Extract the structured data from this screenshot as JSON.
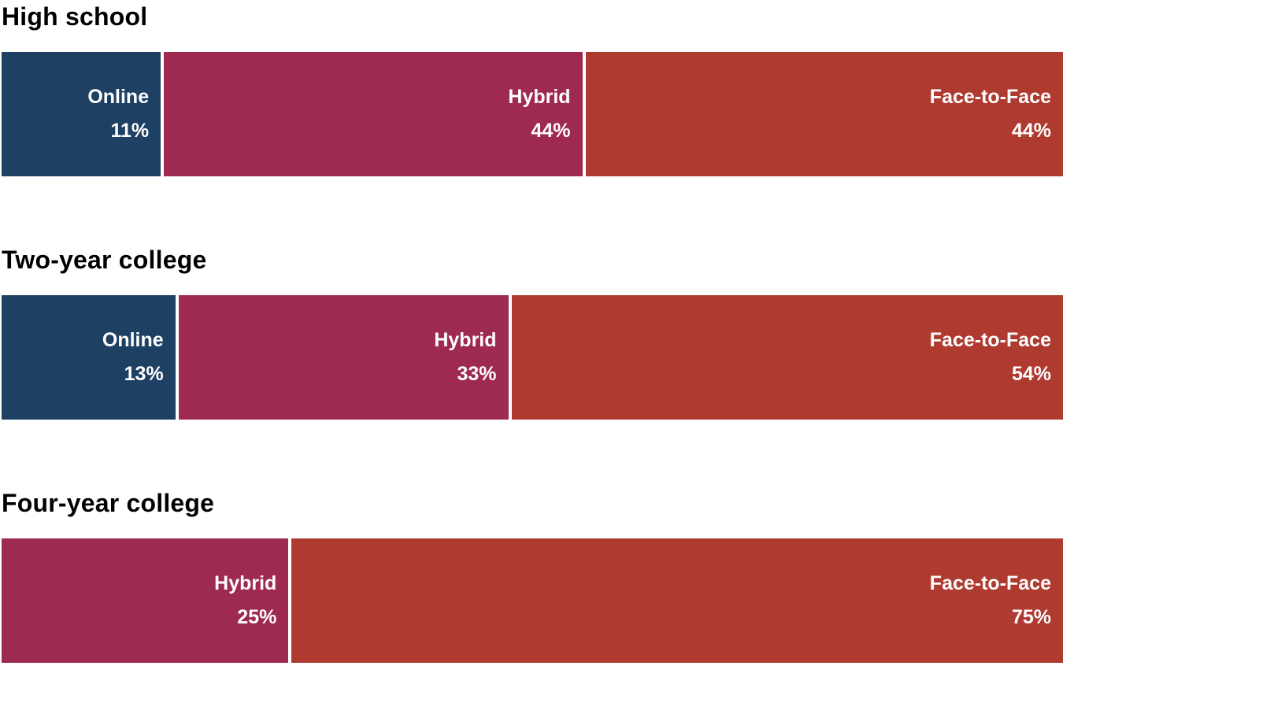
{
  "page": {
    "background_color": "#ffffff",
    "text_color": "#000000",
    "label_text_color": "#ffffff"
  },
  "chart_data": {
    "type": "bar",
    "subtype": "stacked-horizontal-100percent",
    "orientation": "horizontal",
    "value_format": "percent",
    "grid": "off",
    "axes": "none",
    "legend_position": "none",
    "series_colors": {
      "Online": "#1e4063",
      "Hybrid": "#9e2a52",
      "Face-to-Face": "#af3a30"
    },
    "groups": [
      {
        "title": "High school",
        "segments": [
          {
            "label": "Online",
            "value": 11,
            "value_label": "11%",
            "color": "#1e4063"
          },
          {
            "label": "Hybrid",
            "value": 44,
            "value_label": "44%",
            "color": "#9e2a52"
          },
          {
            "label": "Face-to-Face",
            "value": 44,
            "value_label": "44%",
            "color": "#af3a30"
          }
        ]
      },
      {
        "title": "Two-year college",
        "segments": [
          {
            "label": "Online",
            "value": 13,
            "value_label": "13%",
            "color": "#1e4063"
          },
          {
            "label": "Hybrid",
            "value": 33,
            "value_label": "33%",
            "color": "#9e2a52"
          },
          {
            "label": "Face-to-Face",
            "value": 54,
            "value_label": "54%",
            "color": "#af3a30"
          }
        ]
      },
      {
        "title": "Four-year college",
        "segments": [
          {
            "label": "Hybrid",
            "value": 25,
            "value_label": "25%",
            "color": "#9e2a52"
          },
          {
            "label": "Face-to-Face",
            "value": 75,
            "value_label": "75%",
            "color": "#af3a30"
          }
        ]
      }
    ]
  }
}
